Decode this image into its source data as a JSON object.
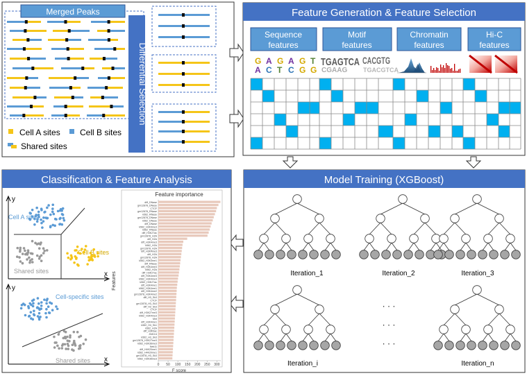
{
  "panel_peaks": {
    "title": "Merged Peaks",
    "legend": {
      "cell_a": "Cell A sites",
      "cell_b": "Cell B sites",
      "shared": "Shared sites"
    }
  },
  "differential": {
    "label": "Differential Selection"
  },
  "feature_gen": {
    "title": "Feature Generation & Feature Selection",
    "categories": [
      {
        "line1": "Sequence",
        "line2": "features"
      },
      {
        "line1": "Motif",
        "line2": "features"
      },
      {
        "line1": "Chromatin",
        "line2": "features"
      },
      {
        "line1": "Hi-C",
        "line2": "features"
      }
    ],
    "sequence_letters": [
      "G",
      "A",
      "G",
      "A",
      "G",
      "T",
      "A",
      "C",
      "T",
      "C",
      "G",
      "G"
    ],
    "motif_text": [
      "TGAGTCA",
      "CACGTG"
    ]
  },
  "model": {
    "title": "Model Training (XGBoost)",
    "iterations": [
      "Iteration_1",
      "Iteration_2",
      "Iteration_3",
      "Iteration_i",
      "Iteration_n"
    ],
    "ellipsis": "· · ·"
  },
  "classification": {
    "title": "Classification & Feature Analysis",
    "axis_x": "x",
    "axis_y": "y",
    "upper": {
      "cell_a": "Cell A sites",
      "cell_b": "Cell B sites",
      "shared": "Shared sites"
    },
    "lower": {
      "cell_specific": "Cell-specific sites",
      "shared": "Shared sites"
    }
  },
  "chart_data": {
    "type": "bar",
    "title": "Feature importance",
    "xlabel": "F score",
    "ylabel": "Features",
    "xlim": [
      0,
      320
    ],
    "xticks": [
      0,
      50,
      100,
      150,
      200,
      250,
      300
    ],
    "categories": [
      "diff_DNase",
      "gm12878_DNase",
      "CTCF",
      "gm12878_RNase",
      "k562_RNase",
      "gm12878_DNase",
      "k562_DNase",
      "diff_DNase",
      "k562_H3K4me3",
      "k562_RNase",
      "diff_H3K27ac",
      "gm12878_H2A",
      "diff_H2A",
      "diff_H3K4me3",
      "k562_H2A",
      "gm12878_H2A",
      "diff_H3K4me3",
      "diff_H2A",
      "gm12878_H2A",
      "k562_H3K4me1",
      "diff_RNase",
      "diff_H3K4me3",
      "k562_H2A",
      "diff_H3K27ac",
      "diff_H3K4me3",
      "k562_H3K4me3",
      "k562_H3K27ac",
      "diff_H3K4me1",
      "k562_H3K4me1",
      "diff_H3K4me2",
      "gm12878_H3K4me2",
      "diff_H3_Sk3",
      "CTCF",
      "gm12878_H3_Sk3",
      "diff_H3_Sk3",
      "CTCF",
      "diff_H3K27me3",
      "k562_H3K4me3",
      "Mnt",
      "diff_H3K4me1",
      "k562_H4_Sk1",
      "k562_H2A",
      "diff_H3K9ac",
      "JNK3.6",
      "k562_H3_Sk3",
      "gm12878_H3K27me3",
      "k562_H3K36me3",
      "Nek11",
      "diff_H4K20me1",
      "k562_H4K20me1",
      "gm12878_H3_Sk3",
      "k562_H3K36me3"
    ],
    "values": [
      318,
      308,
      300,
      296,
      290,
      284,
      279,
      273,
      268,
      263,
      258,
      252,
      148,
      128,
      124,
      122,
      120,
      118,
      116,
      114,
      112,
      110,
      108,
      106,
      104,
      101,
      99,
      97,
      95,
      94,
      93,
      92,
      91,
      90,
      89,
      88,
      87,
      86,
      85,
      84,
      83,
      82,
      81,
      80,
      79,
      78,
      77,
      76,
      75,
      74,
      73,
      72
    ],
    "bar_color": "#e8c9bb"
  },
  "colors": {
    "panel_header": "#4472c4",
    "cell_a": "#f5c518",
    "cell_b": "#5b9bd5",
    "shared": "#999999",
    "matrix_fill": "#00b0f0"
  }
}
